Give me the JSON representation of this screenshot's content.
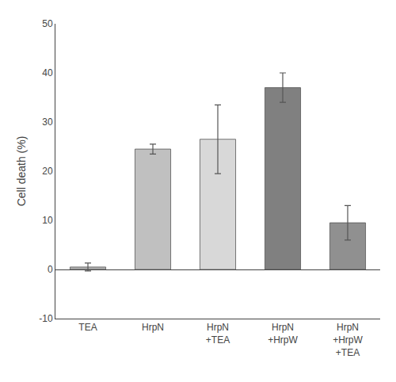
{
  "chart_data": {
    "type": "bar",
    "categories": [
      "TEA",
      "HrpN",
      "HrpN\n+TEA",
      "HrpN\n+HrpW",
      "HrpN\n+HrpW\n+TEA"
    ],
    "values": [
      0.5,
      24.5,
      26.5,
      37.0,
      9.5
    ],
    "errors": [
      0.8,
      1.0,
      7.0,
      3.0,
      3.5
    ],
    "colors": [
      "#b0b0b0",
      "#c0c0c0",
      "#d8d8d8",
      "#808080",
      "#909090"
    ],
    "ylabel": "Cell death (%)",
    "ylim": [
      -10,
      50
    ],
    "yticks": [
      -10,
      0,
      10,
      20,
      30,
      40,
      50
    ],
    "grid": false
  }
}
